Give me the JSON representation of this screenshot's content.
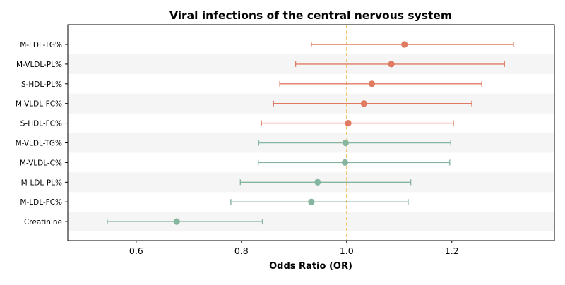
{
  "chart_data": {
    "type": "forest",
    "title": "Viral infections of the central nervous system",
    "xlabel": "Odds Ratio (OR)",
    "ylabel": "",
    "xlim": [
      0.47,
      1.395
    ],
    "x_ticks": [
      0.6,
      0.8,
      1.0,
      1.2
    ],
    "x_tick_labels": [
      "0.6",
      "0.8",
      "1.0",
      "1.2"
    ],
    "reference_line": 1.0,
    "reference_line_style": "dashed",
    "alternating_row_shading": true,
    "colors": {
      "positive": "#e07b62",
      "negative": "#86b5a0",
      "reference": "#f3c876",
      "band": "#f5f5f5",
      "axis": "#000000"
    },
    "series": [
      {
        "label": "M-LDL-TG%",
        "or": 1.11,
        "ci_low": 0.933,
        "ci_high": 1.317,
        "group": "positive"
      },
      {
        "label": "M-VLDL-PL%",
        "or": 1.085,
        "ci_low": 0.903,
        "ci_high": 1.3,
        "group": "positive"
      },
      {
        "label": "S-HDL-PL%",
        "or": 1.048,
        "ci_low": 0.873,
        "ci_high": 1.257,
        "group": "positive"
      },
      {
        "label": "M-VLDL-FC%",
        "or": 1.033,
        "ci_low": 0.861,
        "ci_high": 1.238,
        "group": "positive"
      },
      {
        "label": "S-HDL-FC%",
        "or": 1.003,
        "ci_low": 0.838,
        "ci_high": 1.203,
        "group": "positive"
      },
      {
        "label": "M-VLDL-TG%",
        "or": 0.998,
        "ci_low": 0.833,
        "ci_high": 1.198,
        "group": "negative"
      },
      {
        "label": "M-VLDL-C%",
        "or": 0.997,
        "ci_low": 0.832,
        "ci_high": 1.196,
        "group": "negative"
      },
      {
        "label": "M-LDL-PL%",
        "or": 0.945,
        "ci_low": 0.798,
        "ci_high": 1.122,
        "group": "negative"
      },
      {
        "label": "M-LDL-FC%",
        "or": 0.933,
        "ci_low": 0.78,
        "ci_high": 1.117,
        "group": "negative"
      },
      {
        "label": "Creatinine",
        "or": 0.677,
        "ci_low": 0.545,
        "ci_high": 0.84,
        "group": "negative"
      }
    ]
  }
}
